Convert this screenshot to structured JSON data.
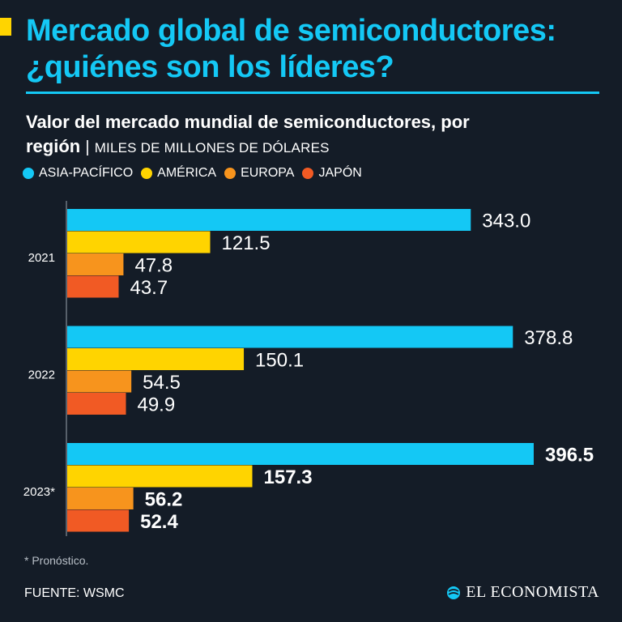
{
  "header": {
    "title_line1": "Mercado global de semiconductores:",
    "title_line2": "¿quiénes son los líderes?"
  },
  "subtitle": {
    "line1": "Valor del mercado mundial de semiconductores, por",
    "line2_bold": "región",
    "separator": "|",
    "unit": "MILES DE MILLONES DE DÓLARES"
  },
  "colors": {
    "background": "#141c27",
    "title": "#14c8f5",
    "asia": "#14c8f5",
    "america": "#ffd400",
    "europa": "#f7941d",
    "japon": "#f15a24"
  },
  "chart_data": {
    "type": "bar",
    "orientation": "horizontal",
    "categories": [
      "2021",
      "2022",
      "2023*"
    ],
    "series": [
      {
        "name": "ASIA-PACÍFICO",
        "color": "#14c8f5",
        "values": [
          343.0,
          378.8,
          396.5
        ],
        "labels": [
          "343.0",
          "378.8",
          "396.5"
        ]
      },
      {
        "name": "AMÉRICA",
        "color": "#ffd400",
        "values": [
          121.5,
          150.1,
          157.3
        ],
        "labels": [
          "121.5",
          "150.1",
          "157.3"
        ]
      },
      {
        "name": "EUROPA",
        "color": "#f7941d",
        "values": [
          47.8,
          54.5,
          56.2
        ],
        "labels": [
          "47.8",
          "54.5",
          "56.2"
        ]
      },
      {
        "name": "JAPÓN",
        "color": "#f15a24",
        "values": [
          43.7,
          49.9,
          52.4
        ],
        "labels": [
          "43.7",
          "49.9",
          "52.4"
        ]
      }
    ],
    "bold_labels_category": "2023*",
    "xlim": [
      0,
      396.5
    ],
    "grid": false,
    "legend_position": "top"
  },
  "footnote": "* Pronóstico.",
  "source": "FUENTE: WSMC",
  "brand": {
    "name": "EL ECONOMISTA",
    "icon": "globe-icon"
  }
}
